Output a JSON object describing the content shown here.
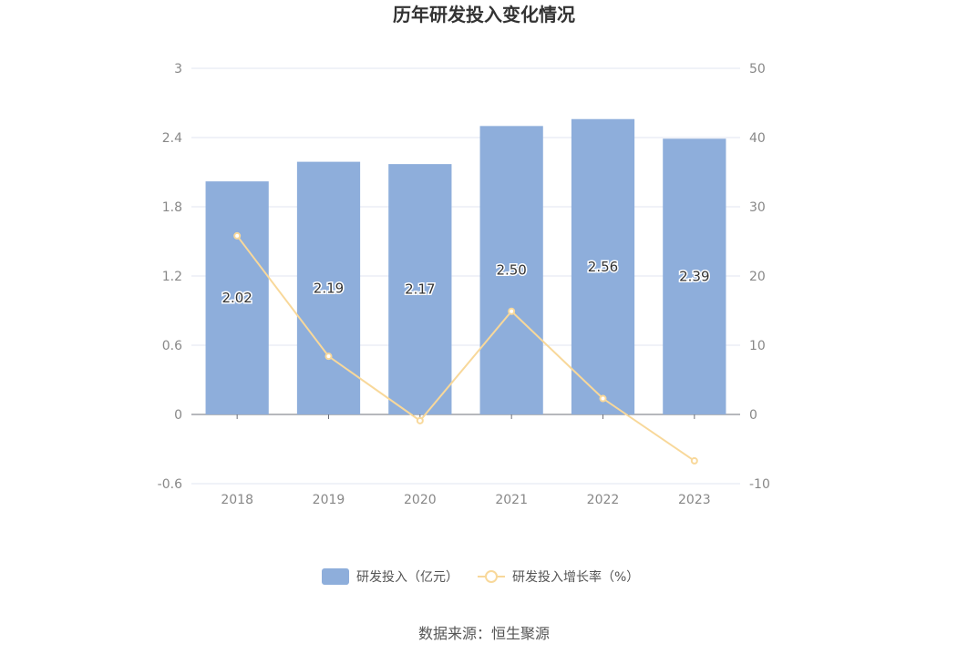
{
  "chart_data": {
    "type": "bar",
    "title": "历年研发投入变化情况",
    "categories": [
      "2018",
      "2019",
      "2020",
      "2021",
      "2022",
      "2023"
    ],
    "series": [
      {
        "name": "研发投入（亿元）",
        "type": "bar",
        "axis": "left",
        "values": [
          2.02,
          2.19,
          2.17,
          2.5,
          2.56,
          2.39
        ],
        "labels": [
          "2.02",
          "2.19",
          "2.17",
          "2.50",
          "2.56",
          "2.39"
        ],
        "color": "#8eaedb"
      },
      {
        "name": "研发投入增长率（%）",
        "type": "line",
        "axis": "right",
        "values": [
          25.8,
          8.4,
          -0.9,
          14.9,
          2.3,
          -6.7
        ],
        "color": "#f8d89a"
      }
    ],
    "y_left": {
      "min": -0.6,
      "max": 3,
      "ticks": [
        "-0.6",
        "0",
        "0.6",
        "1.2",
        "1.8",
        "2.4",
        "3"
      ]
    },
    "y_right": {
      "min": -10,
      "max": 50,
      "ticks": [
        "-10",
        "0",
        "10",
        "20",
        "30",
        "40",
        "50"
      ]
    },
    "grid": true,
    "legend_position": "bottom"
  },
  "source": "数据来源：恒生聚源"
}
